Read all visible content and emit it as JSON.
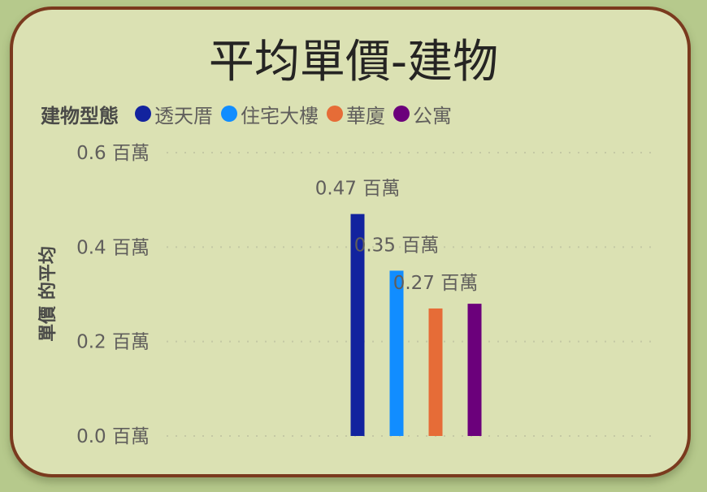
{
  "chart_data": {
    "type": "bar",
    "title": "平均單價-建物",
    "ylabel": "單價 的平均",
    "xlabel": "",
    "legend_title": "建物型態",
    "legend_position": "top-left",
    "grid": true,
    "ylim": [
      0,
      0.6
    ],
    "y_ticks": [
      {
        "value": 0.0,
        "label": "0.0 百萬"
      },
      {
        "value": 0.2,
        "label": "0.2 百萬"
      },
      {
        "value": 0.4,
        "label": "0.4 百萬"
      },
      {
        "value": 0.6,
        "label": "0.6 百萬"
      }
    ],
    "categories": [
      "透天厝",
      "住宅大樓",
      "華廈",
      "公寓"
    ],
    "values": [
      0.47,
      0.35,
      0.27,
      0.28
    ],
    "data_labels": [
      "0.47 百萬",
      "0.35 百萬",
      "0.27 百萬",
      ""
    ],
    "colors": [
      "#12239e",
      "#118dff",
      "#e66c37",
      "#6b007b"
    ]
  }
}
